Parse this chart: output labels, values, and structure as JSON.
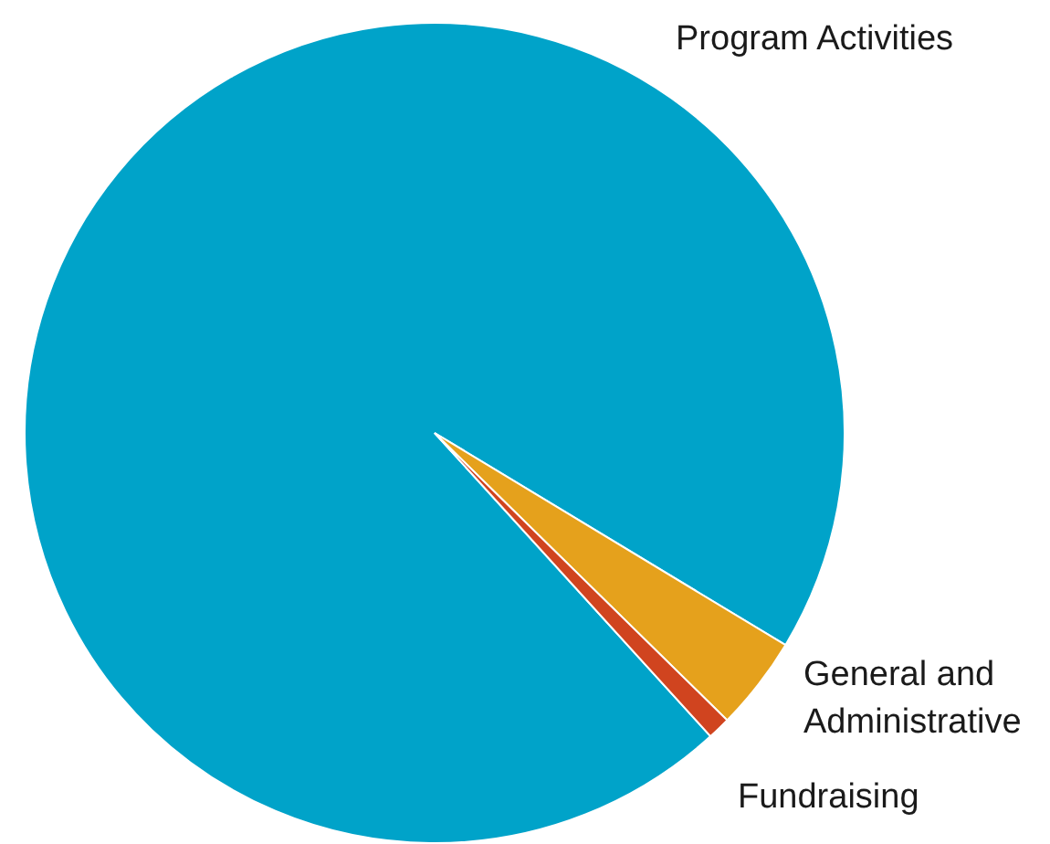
{
  "chart_data": {
    "type": "pie",
    "categories": [
      "Program Activities",
      "General and Administrative",
      "Fundraising"
    ],
    "values": [
      95.4,
      3.7,
      0.9
    ],
    "colors": [
      "#00a3c9",
      "#e5a11c",
      "#d0441f"
    ],
    "legend": false
  }
}
